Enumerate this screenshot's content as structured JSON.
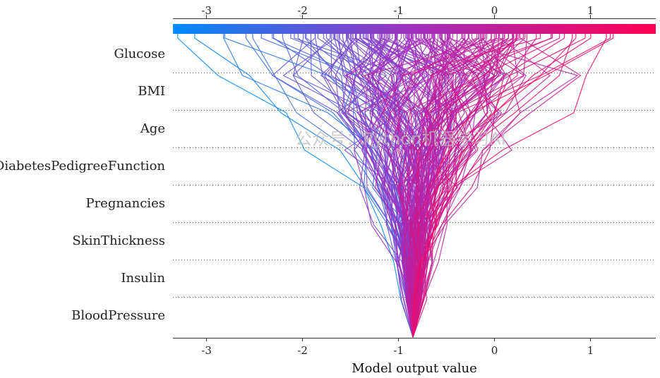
{
  "chart_data": {
    "type": "decision_plot",
    "xlabel": "Model output value",
    "xlim": [
      -3.35,
      1.68
    ],
    "x_ticks": [
      -3,
      -2,
      -1,
      0,
      1
    ],
    "base_value": -0.85,
    "features": [
      "Glucose",
      "BMI",
      "Age",
      "DiabetesPedigreeFunction",
      "Pregnancies",
      "SkinThickness",
      "Insulin",
      "BloodPressure"
    ],
    "num_samples": 200,
    "colormap": [
      "#008bfb",
      "#ff0052"
    ],
    "grid": "dotted horizontal lines between features",
    "watermark_text": "公众号：Python机器学习AI"
  }
}
